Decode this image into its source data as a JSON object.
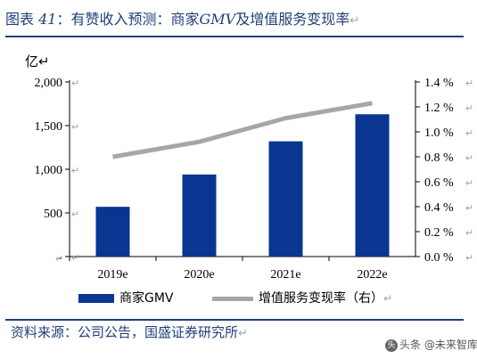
{
  "title": {
    "prefix": "图表",
    "number": "41",
    "text": "：有赞收入预测：商家",
    "gmv_word": "GMV",
    "suffix": "及增值服务变现率"
  },
  "return_mark": "↵",
  "left_unit": "亿",
  "left_ticks": [
    "2,000",
    "1,500",
    "1,000",
    "500",
    "-"
  ],
  "right_ticks": [
    "1.4 %",
    "1.2 %",
    "1.0 %",
    "0.8 %",
    "0.6 %",
    "0.4 %",
    "0.2 %",
    "0.0 %"
  ],
  "source": "资料来源：公司公告，国盛证券研究所",
  "watermark": "头条 @未来智库",
  "watermark_icon": "头",
  "colors": {
    "bar": "#0a3591",
    "line": "#a6a6a6",
    "accent": "#1f3f7a"
  },
  "chart_data": {
    "type": "bar+line",
    "categories": [
      "2019e",
      "2020e",
      "2021e",
      "2022e"
    ],
    "series": [
      {
        "name": "商家GMV",
        "type": "bar",
        "axis": "left",
        "values": [
          570,
          940,
          1320,
          1630
        ]
      },
      {
        "name": "增值服务变现率（右）",
        "type": "line",
        "axis": "right",
        "values": [
          0.8,
          0.92,
          1.11,
          1.23
        ]
      }
    ],
    "ylim_left": [
      0,
      2000
    ],
    "ylim_right": [
      0,
      1.4
    ],
    "ylabel_left": "亿",
    "ylabel_right": "%",
    "legend": "bottom",
    "grid": false
  }
}
